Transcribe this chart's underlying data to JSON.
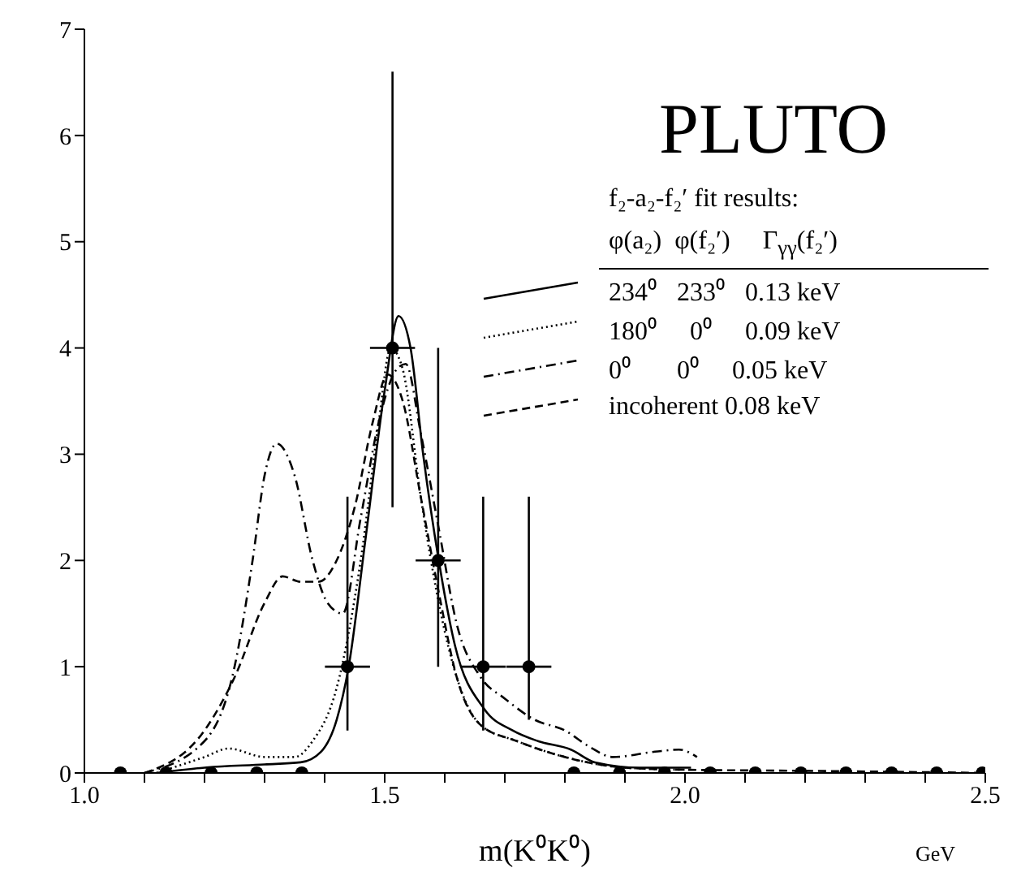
{
  "chart_data": {
    "type": "line",
    "title": "PLUTO",
    "xlabel": "m(K⁰K⁰)",
    "annotations": [
      "GeV",
      "f₂-a₂-f₂′ fit results:",
      "φ(a₂)  φ(f₂′)     Γ$_{γγ}$(f₂′)"
    ],
    "legend": "top right",
    "xlim": [
      1.0,
      2.5
    ],
    "xticks": [
      {
        "value": 1.0,
        "label": "1.0"
      },
      {
        "value": 1.1,
        "label": null
      },
      {
        "value": 1.2,
        "label": null
      },
      {
        "value": 1.3,
        "label": null
      },
      {
        "value": 1.4,
        "label": null
      },
      {
        "value": 1.5,
        "label": "1.5"
      },
      {
        "value": 1.6,
        "label": null
      },
      {
        "value": 1.7,
        "label": null
      },
      {
        "value": 1.8,
        "label": null
      },
      {
        "value": 1.9,
        "label": null
      },
      {
        "value": 2.0,
        "label": "2.0"
      },
      {
        "value": 2.1,
        "label": null
      },
      {
        "value": 2.2,
        "label": null
      },
      {
        "value": 2.3,
        "label": null
      },
      {
        "value": 2.4,
        "label": null
      },
      {
        "value": 2.5,
        "label": "2.5"
      }
    ],
    "ylim": [
      0,
      7
    ],
    "yticks": [
      0,
      1,
      2,
      3,
      4,
      5,
      6,
      7
    ],
    "grid": false,
    "series": [
      {
        "type": "scatter",
        "marker": "circle",
        "color": "#000000",
        "x": [
          1.06,
          1.136,
          1.211,
          1.287,
          1.362,
          1.438,
          1.513,
          1.589,
          1.664,
          1.74,
          1.815,
          1.891,
          1.966,
          2.042,
          2.117,
          2.193,
          2.268,
          2.344,
          2.419,
          2.495
        ],
        "values": [
          0,
          0,
          0,
          0,
          0,
          1,
          4,
          2,
          1,
          1,
          0,
          0,
          0,
          0,
          0,
          0,
          0,
          0,
          0,
          0
        ],
        "errors": [
          null,
          null,
          null,
          null,
          null,
          [
            0.4,
            2.6
          ],
          [
            2.5,
            6.6
          ],
          [
            1.0,
            4.0
          ],
          [
            0.4,
            2.6
          ],
          [
            0.5,
            2.6
          ],
          null,
          null,
          null,
          null,
          null,
          null,
          null,
          null,
          null,
          null
        ],
        "xerrors": [
          null,
          null,
          null,
          null,
          null,
          0.0375,
          0.0375,
          0.0375,
          0.0375,
          0.0375,
          null,
          null,
          null,
          null,
          null,
          null,
          null,
          null,
          null,
          null
        ]
      },
      {
        "name": "234⁰   233⁰   0.13 keV",
        "line_style": "solid",
        "marker": "none",
        "color": "#000000",
        "x": [
          1.12,
          1.2,
          1.3,
          1.36,
          1.394,
          1.42,
          1.44,
          1.468,
          1.5,
          1.523,
          1.543,
          1.564,
          1.59,
          1.617,
          1.666,
          1.713,
          1.755,
          1.81,
          1.85,
          1.925,
          2.01
        ],
        "values": [
          0,
          0.05,
          0.08,
          0.1,
          0.2,
          0.5,
          1.0,
          2.2,
          3.6,
          4.3,
          4.0,
          3.0,
          2.0,
          1.2,
          0.6,
          0.4,
          0.3,
          0.22,
          0.1,
          0.05,
          0.05
        ]
      },
      {
        "name": "180⁰     0⁰     0.09 keV",
        "line_style": "dotted",
        "marker": "none",
        "color": "#000000",
        "x": [
          1.12,
          1.2,
          1.24,
          1.3,
          1.35,
          1.38,
          1.42,
          1.46,
          1.49,
          1.51,
          1.53,
          1.56,
          1.59,
          1.62,
          1.66,
          1.72,
          1.8,
          1.9,
          2.0
        ],
        "values": [
          0,
          0.15,
          0.23,
          0.15,
          0.15,
          0.3,
          0.8,
          2.0,
          3.3,
          4.0,
          3.8,
          2.6,
          1.6,
          0.9,
          0.45,
          0.3,
          0.15,
          0.05,
          0.03
        ]
      },
      {
        "name": "0⁰       0⁰     0.05 keV",
        "line_style": "dashdot",
        "marker": "none",
        "color": "#000000",
        "x": [
          1.1,
          1.2,
          1.25,
          1.28,
          1.3,
          1.32,
          1.35,
          1.38,
          1.405,
          1.43,
          1.46,
          1.49,
          1.52,
          1.535,
          1.56,
          1.59,
          1.62,
          1.66,
          1.7,
          1.75,
          1.8,
          1.84,
          1.88,
          1.95,
          1.99,
          2.02
        ],
        "values": [
          0,
          0.3,
          1.0,
          2.0,
          2.8,
          3.1,
          2.8,
          2.0,
          1.6,
          1.5,
          2.4,
          3.3,
          3.8,
          3.85,
          3.2,
          2.3,
          1.4,
          0.9,
          0.7,
          0.5,
          0.4,
          0.25,
          0.15,
          0.2,
          0.22,
          0.15
        ]
      },
      {
        "name": "incoherent 0.08 keV",
        "line_style": "dashed",
        "marker": "none",
        "color": "#000000",
        "x": [
          1.1,
          1.2,
          1.25,
          1.3,
          1.33,
          1.36,
          1.39,
          1.42,
          1.45,
          1.48,
          1.505,
          1.53,
          1.56,
          1.59,
          1.62,
          1.66,
          1.72,
          1.8,
          1.9,
          2.0,
          2.2,
          2.5
        ],
        "values": [
          0,
          0.4,
          0.9,
          1.6,
          1.85,
          1.8,
          1.8,
          2.0,
          2.5,
          3.3,
          3.75,
          3.5,
          2.6,
          1.7,
          0.9,
          0.45,
          0.3,
          0.15,
          0.05,
          0.03,
          0.02,
          0
        ]
      }
    ]
  }
}
